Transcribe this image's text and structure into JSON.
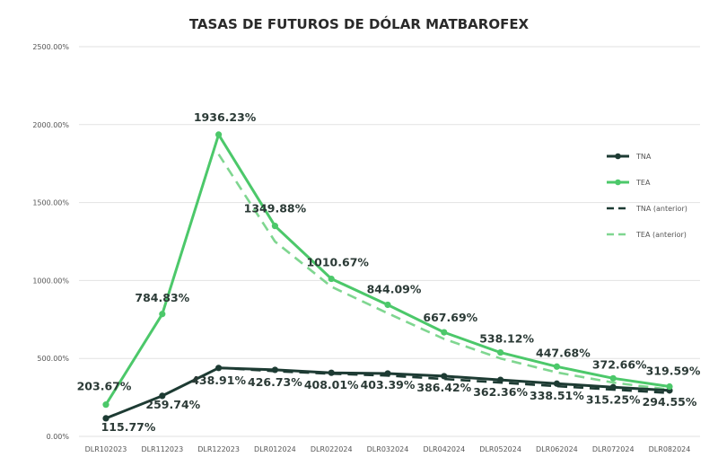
{
  "chart_data": {
    "type": "line",
    "title": "TASAS DE FUTUROS DE DÓLAR MATBAROFEX",
    "xlabel": "",
    "ylabel": "",
    "ylim": [
      0,
      2500
    ],
    "y_ticks": [
      "0.00%",
      "500.00%",
      "1000.00%",
      "1500.00%",
      "2000.00%",
      "2500.00%"
    ],
    "y_tick_values": [
      0,
      500,
      1000,
      1500,
      2000,
      2500
    ],
    "categories": [
      "DLR102023",
      "DLR112023",
      "DLR122023",
      "DLR012024",
      "DLR022024",
      "DLR032024",
      "DLR042024",
      "DLR052024",
      "DLR062024",
      "DLR072024",
      "DLR082024"
    ],
    "series": [
      {
        "name": "TNA",
        "color": "#1d3b33",
        "dashed": false,
        "values": [
          115.77,
          259.74,
          438.91,
          426.73,
          408.01,
          403.39,
          386.42,
          362.36,
          338.51,
          315.25,
          294.55
        ],
        "labels": [
          "115.77%",
          "259.74%",
          "438.91%",
          "426.73%",
          "408.01%",
          "403.39%",
          "386.42%",
          "362.36%",
          "338.51%",
          "315.25%",
          "294.55%"
        ]
      },
      {
        "name": "TEA",
        "color": "#4cc86a",
        "dashed": false,
        "values": [
          203.67,
          784.83,
          1936.23,
          1349.88,
          1010.67,
          844.09,
          667.69,
          538.12,
          447.68,
          372.66,
          319.59
        ],
        "labels": [
          "203.67%",
          "784.83%",
          "1936.23%",
          "1349.88%",
          "1010.67%",
          "844.09%",
          "667.69%",
          "538.12%",
          "447.68%",
          "372.66%",
          "319.59%"
        ]
      },
      {
        "name": "TNA (anterior)",
        "color": "#1d3b33",
        "dashed": true,
        "values": [
          null,
          null,
          440,
          418,
          402,
          390,
          368,
          345,
          322,
          300,
          278
        ]
      },
      {
        "name": "TEA (anterior)",
        "color": "#7fd690",
        "dashed": true,
        "values": [
          null,
          null,
          1810,
          1250,
          960,
          790,
          625,
          500,
          410,
          345,
          300
        ]
      }
    ],
    "legend": {
      "position": "right",
      "entries": [
        "TNA",
        "TEA",
        "TNA (anterior)",
        "TEA (anterior)"
      ]
    },
    "grid": true
  }
}
